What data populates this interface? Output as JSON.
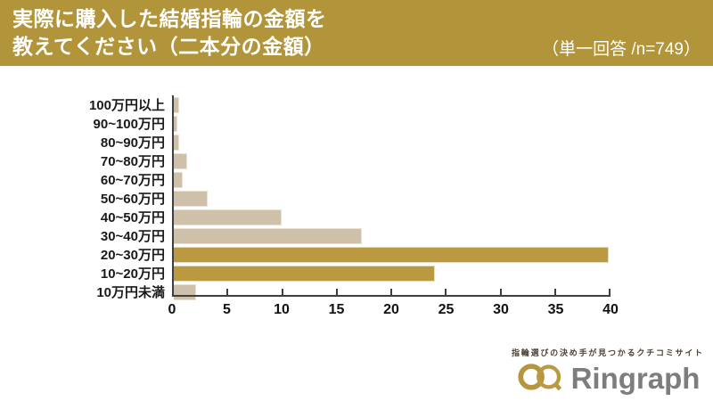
{
  "header": {
    "title_line1": "実際に購入した結婚指輪の金額を",
    "title_line2": "教えてください（二本分の金額）",
    "note": "（単一回答 /n=749）"
  },
  "chart_data": {
    "type": "bar",
    "orientation": "horizontal",
    "title": "実際に購入した結婚指輪の金額を教えてください（二本分の金額）",
    "sample_note": "単一回答 /n=749",
    "unit": "%",
    "categories": [
      "100万円以上",
      "90~100万円",
      "80~90万円",
      "70~80万円",
      "60~70万円",
      "50~60万円",
      "40~50万円",
      "30~40万円",
      "20~30万円",
      "10~20万円",
      "10万円未満"
    ],
    "values": [
      0.5,
      0.3,
      0.5,
      1.2,
      0.8,
      3.1,
      9.9,
      17.2,
      39.8,
      23.9,
      2.0
    ],
    "highlighted_categories": [
      "20~30万円",
      "10~20万円"
    ],
    "x_ticks": [
      "0",
      "5",
      "10",
      "15",
      "20",
      "25",
      "30",
      "35",
      "40"
    ],
    "xlim": [
      0,
      40
    ],
    "grid": false,
    "legend": false,
    "colors": {
      "bar_default": "#cfc0a9",
      "bar_highlight": "#bb9940",
      "header_bg": "#b2953a",
      "axis": "#3f3f3f"
    }
  },
  "footer": {
    "tagline": "指輪選びの決め手が見つかるクチコミサイト",
    "brand": "Ringraph",
    "brand_gold": "#b5953d",
    "brand_gray": "#7d7d7d"
  }
}
